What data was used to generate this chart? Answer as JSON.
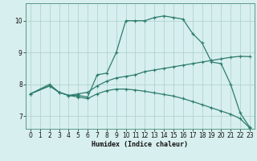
{
  "xlabel": "Humidex (Indice chaleur)",
  "bg_color": "#d7efee",
  "line_color": "#2e7d6e",
  "grid_color": "#aacfcc",
  "xlim": [
    -0.5,
    23.5
  ],
  "ylim": [
    6.6,
    10.55
  ],
  "xticks": [
    0,
    1,
    2,
    3,
    4,
    5,
    6,
    7,
    8,
    9,
    10,
    11,
    12,
    13,
    14,
    15,
    16,
    17,
    18,
    19,
    20,
    21,
    22,
    23
  ],
  "yticks": [
    7,
    8,
    9,
    10
  ],
  "line1_x": [
    0,
    2,
    3,
    4,
    5,
    6,
    7,
    8,
    9,
    10,
    11,
    12,
    13,
    14,
    15,
    16,
    17,
    18,
    19,
    20,
    21,
    22,
    23
  ],
  "line1_y": [
    7.7,
    8.0,
    7.75,
    7.65,
    7.65,
    7.6,
    8.3,
    8.35,
    9.0,
    10.0,
    10.0,
    10.0,
    10.1,
    10.15,
    10.1,
    10.05,
    9.6,
    9.3,
    8.7,
    8.65,
    8.0,
    7.1,
    6.65
  ],
  "line2_x": [
    0,
    2,
    3,
    4,
    5,
    6,
    7,
    8,
    9,
    10,
    11,
    12,
    13,
    14,
    15,
    16,
    17,
    18,
    19,
    20,
    21,
    22,
    23
  ],
  "line2_y": [
    7.7,
    7.95,
    7.75,
    7.65,
    7.7,
    7.75,
    7.95,
    8.1,
    8.2,
    8.25,
    8.3,
    8.4,
    8.45,
    8.5,
    8.55,
    8.6,
    8.65,
    8.7,
    8.75,
    8.8,
    8.85,
    8.88,
    8.87
  ],
  "line3_x": [
    0,
    2,
    3,
    4,
    5,
    6,
    7,
    8,
    9,
    10,
    11,
    12,
    13,
    14,
    15,
    16,
    17,
    18,
    19,
    20,
    21,
    22,
    23
  ],
  "line3_y": [
    7.7,
    7.95,
    7.75,
    7.65,
    7.6,
    7.55,
    7.7,
    7.8,
    7.85,
    7.85,
    7.82,
    7.78,
    7.73,
    7.68,
    7.63,
    7.55,
    7.46,
    7.36,
    7.26,
    7.16,
    7.06,
    6.92,
    6.63
  ]
}
